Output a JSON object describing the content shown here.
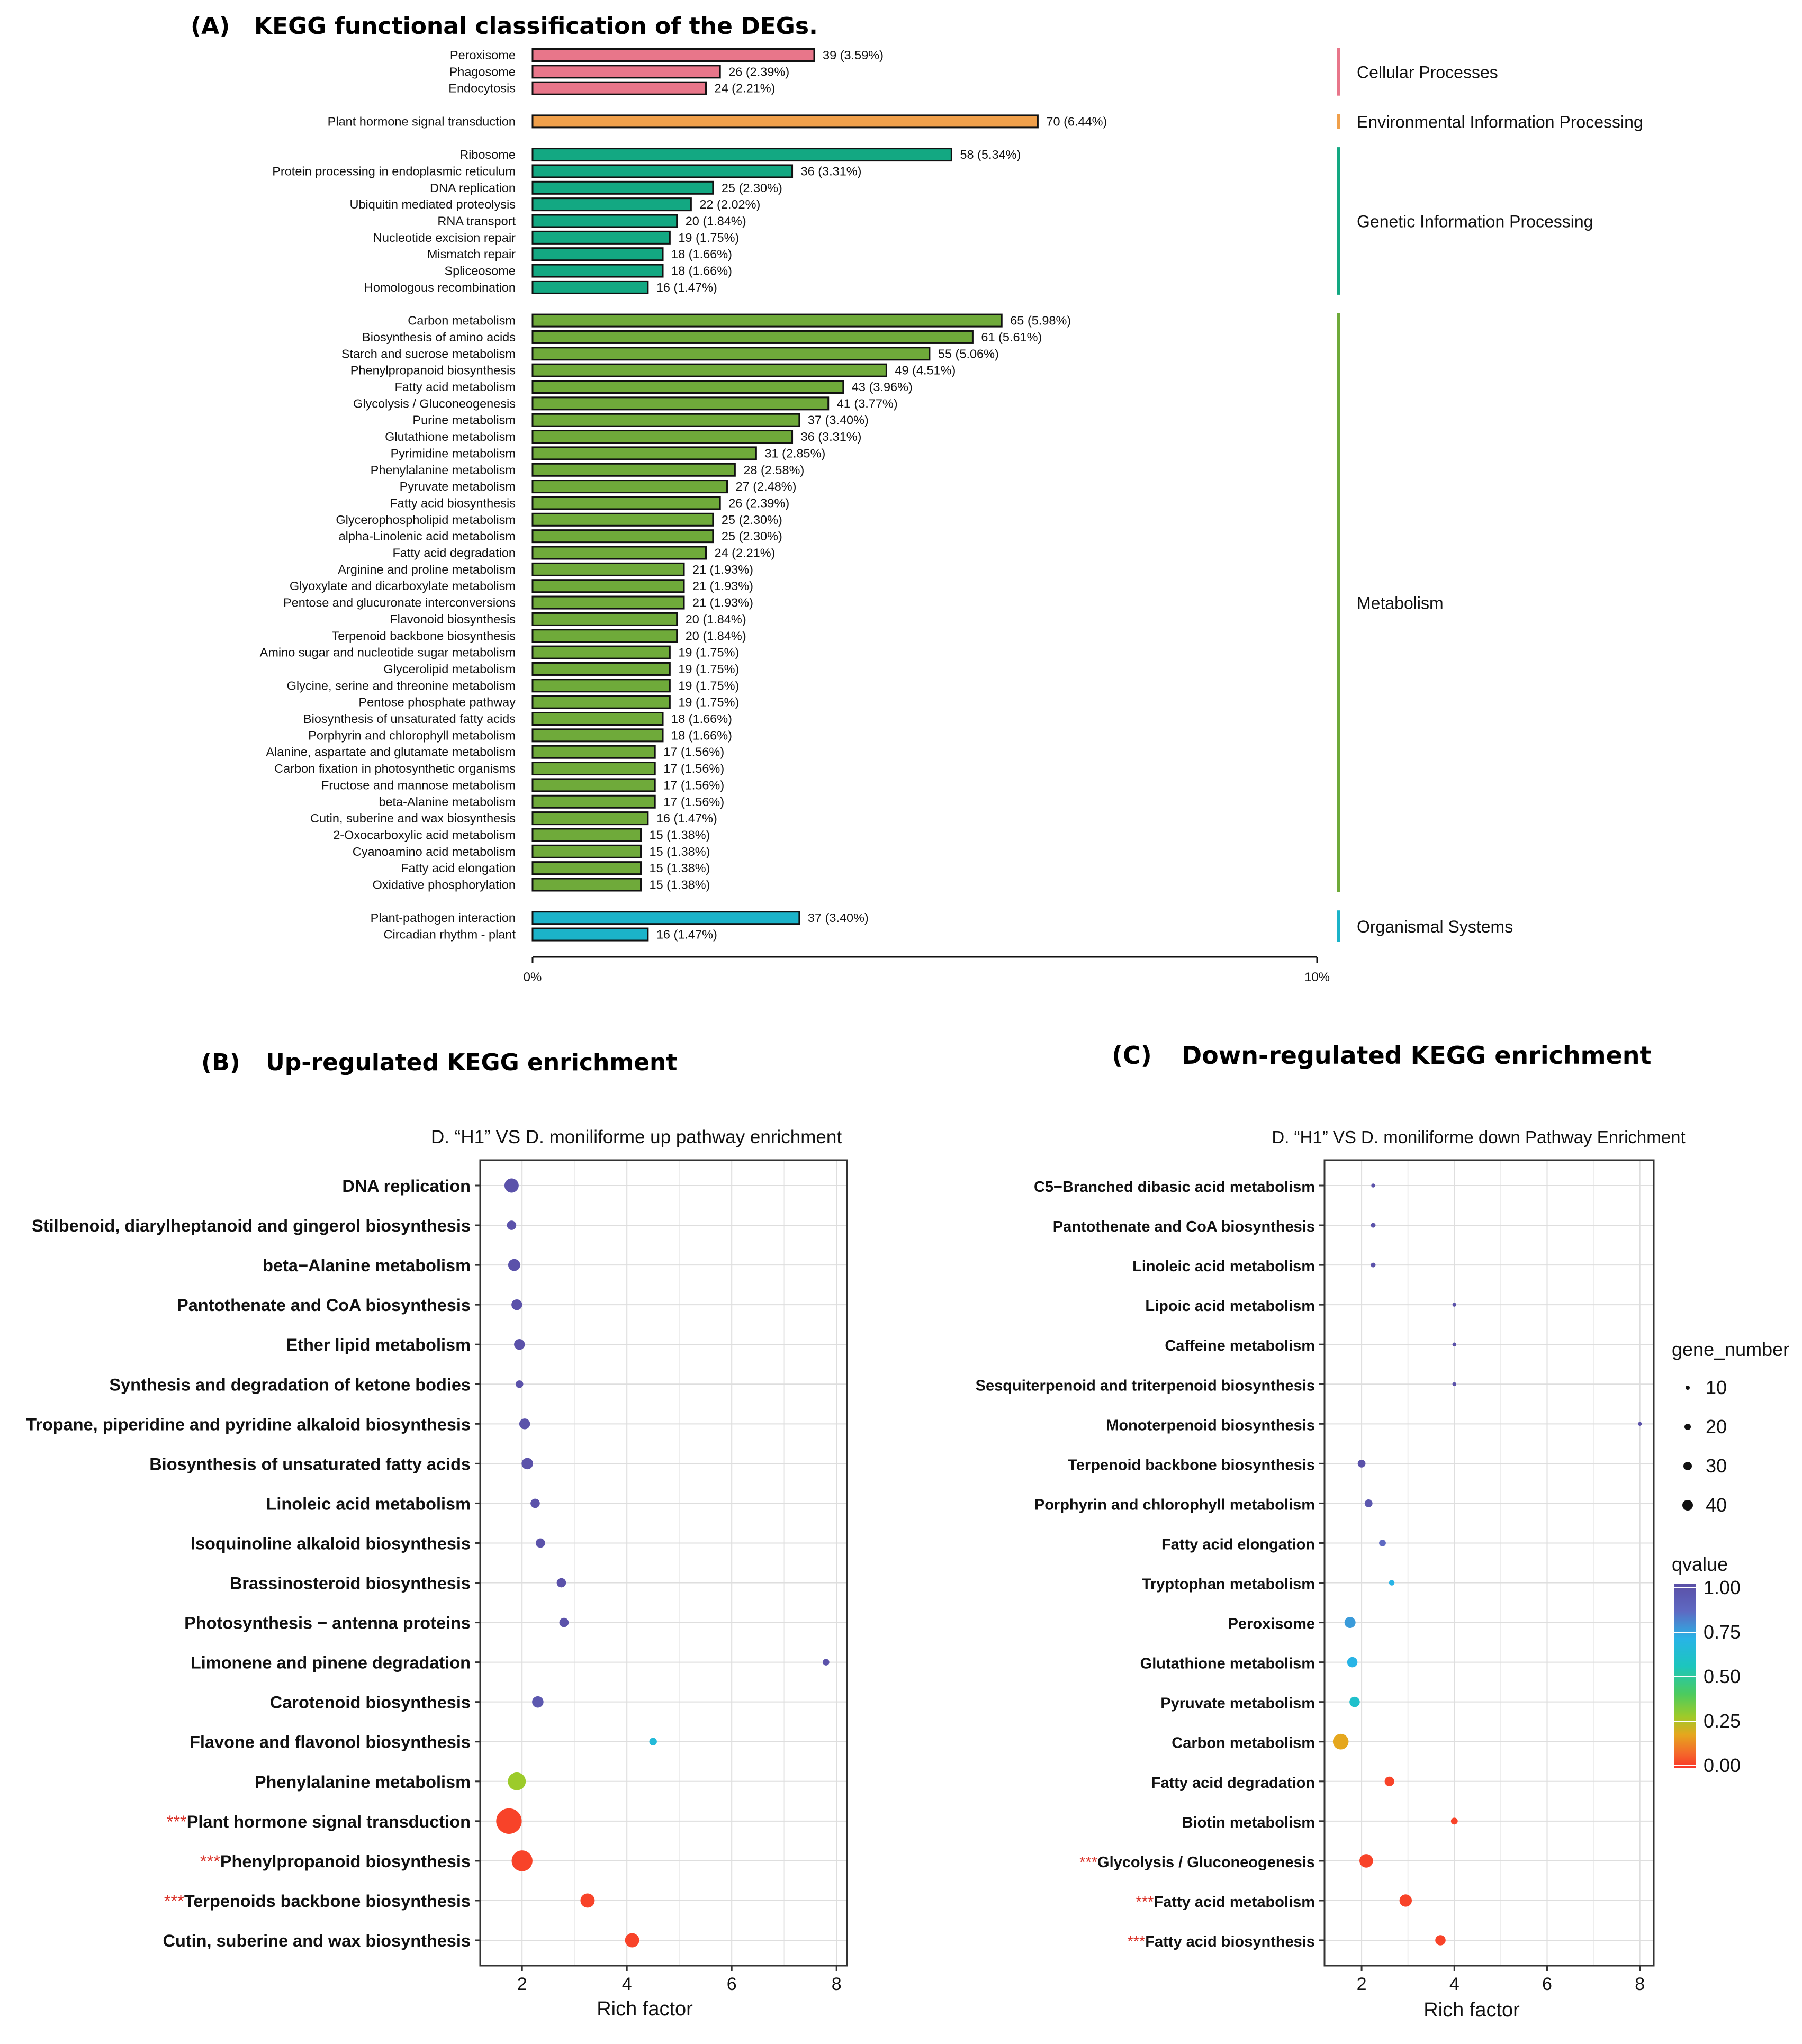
{
  "panel_a": {
    "label": "(A)",
    "title": "KEGG functional classification of the DEGs.",
    "axis_ticks": [
      "0%",
      "10%"
    ]
  },
  "panel_b": {
    "label": "(B)",
    "title": "Up-regulated KEGG enrichment",
    "plot_title": "D. “H1” VS D. moniliforme up pathway enrichment",
    "xlabel": "Rich factor",
    "xticks": [
      "2",
      "4",
      "6",
      "8"
    ],
    "star": "***"
  },
  "panel_c": {
    "label": "(C)",
    "title": "Down-regulated KEGG enrichment",
    "plot_title": "D. “H1” VS D. moniliforme down Pathway Enrichment",
    "xlabel": "Rich factor",
    "xticks": [
      "2",
      "4",
      "6",
      "8"
    ],
    "star": "***"
  },
  "legend": {
    "gene_number_title": "gene_number",
    "gene_number_values": [
      "10",
      "20",
      "30",
      "40"
    ],
    "qvalue_title": "qvalue",
    "qvalue_ticks": [
      "1.00",
      "0.75",
      "0.50",
      "0.25",
      "0.00"
    ]
  },
  "colors": {
    "cellular": "#E8768A",
    "environmental": "#F0A04B",
    "genetic": "#13A882",
    "metabolism": "#6FAA3A",
    "organismal": "#1BB3C9",
    "star": "#D9342B"
  },
  "chart_data": [
    {
      "type": "bar",
      "orientation": "horizontal",
      "title": "KEGG functional classification of the DEGs.",
      "xlim_percent": [
        0,
        10
      ],
      "groups": [
        {
          "name": "Cellular Processes",
          "color": "#E8768A",
          "items": [
            {
              "label": "Peroxisome",
              "count": 39,
              "pct": 3.59,
              "text": "39 (3.59%)"
            },
            {
              "label": "Phagosome",
              "count": 26,
              "pct": 2.39,
              "text": "26 (2.39%)"
            },
            {
              "label": "Endocytosis",
              "count": 24,
              "pct": 2.21,
              "text": "24 (2.21%)"
            }
          ]
        },
        {
          "name": "Environmental Information Processing",
          "color": "#F0A04B",
          "items": [
            {
              "label": "Plant hormone signal transduction",
              "count": 70,
              "pct": 6.44,
              "text": "70 (6.44%)"
            }
          ]
        },
        {
          "name": "Genetic Information Processing",
          "color": "#13A882",
          "items": [
            {
              "label": "Ribosome",
              "count": 58,
              "pct": 5.34,
              "text": "58 (5.34%)"
            },
            {
              "label": "Protein processing in endoplasmic reticulum",
              "count": 36,
              "pct": 3.31,
              "text": "36 (3.31%)"
            },
            {
              "label": "DNA replication",
              "count": 25,
              "pct": 2.3,
              "text": "25 (2.30%)"
            },
            {
              "label": "Ubiquitin mediated proteolysis",
              "count": 22,
              "pct": 2.02,
              "text": "22 (2.02%)"
            },
            {
              "label": "RNA transport",
              "count": 20,
              "pct": 1.84,
              "text": "20 (1.84%)"
            },
            {
              "label": "Nucleotide excision repair",
              "count": 19,
              "pct": 1.75,
              "text": "19 (1.75%)"
            },
            {
              "label": "Mismatch repair",
              "count": 18,
              "pct": 1.66,
              "text": "18 (1.66%)"
            },
            {
              "label": "Spliceosome",
              "count": 18,
              "pct": 1.66,
              "text": "18 (1.66%)"
            },
            {
              "label": "Homologous recombination",
              "count": 16,
              "pct": 1.47,
              "text": "16 (1.47%)"
            }
          ]
        },
        {
          "name": "Metabolism",
          "color": "#6FAA3A",
          "items": [
            {
              "label": "Carbon metabolism",
              "count": 65,
              "pct": 5.98,
              "text": "65 (5.98%)"
            },
            {
              "label": "Biosynthesis of amino acids",
              "count": 61,
              "pct": 5.61,
              "text": "61 (5.61%)"
            },
            {
              "label": "Starch and sucrose metabolism",
              "count": 55,
              "pct": 5.06,
              "text": "55 (5.06%)"
            },
            {
              "label": "Phenylpropanoid biosynthesis",
              "count": 49,
              "pct": 4.51,
              "text": "49 (4.51%)"
            },
            {
              "label": "Fatty acid metabolism",
              "count": 43,
              "pct": 3.96,
              "text": "43 (3.96%)"
            },
            {
              "label": "Glycolysis / Gluconeogenesis",
              "count": 41,
              "pct": 3.77,
              "text": "41 (3.77%)"
            },
            {
              "label": "Purine metabolism",
              "count": 37,
              "pct": 3.4,
              "text": "37 (3.40%)"
            },
            {
              "label": "Glutathione metabolism",
              "count": 36,
              "pct": 3.31,
              "text": "36 (3.31%)"
            },
            {
              "label": "Pyrimidine metabolism",
              "count": 31,
              "pct": 2.85,
              "text": "31 (2.85%)"
            },
            {
              "label": "Phenylalanine metabolism",
              "count": 28,
              "pct": 2.58,
              "text": "28 (2.58%)"
            },
            {
              "label": "Pyruvate metabolism",
              "count": 27,
              "pct": 2.48,
              "text": "27 (2.48%)"
            },
            {
              "label": "Fatty acid biosynthesis",
              "count": 26,
              "pct": 2.39,
              "text": "26 (2.39%)"
            },
            {
              "label": "Glycerophospholipid metabolism",
              "count": 25,
              "pct": 2.3,
              "text": "25 (2.30%)"
            },
            {
              "label": "alpha-Linolenic acid metabolism",
              "count": 25,
              "pct": 2.3,
              "text": "25 (2.30%)"
            },
            {
              "label": "Fatty acid degradation",
              "count": 24,
              "pct": 2.21,
              "text": "24 (2.21%)"
            },
            {
              "label": "Arginine and proline metabolism",
              "count": 21,
              "pct": 1.93,
              "text": "21 (1.93%)"
            },
            {
              "label": "Glyoxylate and dicarboxylate metabolism",
              "count": 21,
              "pct": 1.93,
              "text": "21 (1.93%)"
            },
            {
              "label": "Pentose and glucuronate interconversions",
              "count": 21,
              "pct": 1.93,
              "text": "21 (1.93%)"
            },
            {
              "label": "Flavonoid biosynthesis",
              "count": 20,
              "pct": 1.84,
              "text": "20 (1.84%)"
            },
            {
              "label": "Terpenoid backbone biosynthesis",
              "count": 20,
              "pct": 1.84,
              "text": "20 (1.84%)"
            },
            {
              "label": "Amino sugar and nucleotide sugar metabolism",
              "count": 19,
              "pct": 1.75,
              "text": "19 (1.75%)"
            },
            {
              "label": "Glycerolipid metabolism",
              "count": 19,
              "pct": 1.75,
              "text": "19 (1.75%)"
            },
            {
              "label": "Glycine, serine and threonine metabolism",
              "count": 19,
              "pct": 1.75,
              "text": "19 (1.75%)"
            },
            {
              "label": "Pentose phosphate pathway",
              "count": 19,
              "pct": 1.75,
              "text": "19 (1.75%)"
            },
            {
              "label": "Biosynthesis of unsaturated fatty acids",
              "count": 18,
              "pct": 1.66,
              "text": "18 (1.66%)"
            },
            {
              "label": "Porphyrin and chlorophyll metabolism",
              "count": 18,
              "pct": 1.66,
              "text": "18 (1.66%)"
            },
            {
              "label": "Alanine, aspartate and glutamate metabolism",
              "count": 17,
              "pct": 1.56,
              "text": "17 (1.56%)"
            },
            {
              "label": "Carbon fixation in photosynthetic organisms",
              "count": 17,
              "pct": 1.56,
              "text": "17 (1.56%)"
            },
            {
              "label": "Fructose and mannose metabolism",
              "count": 17,
              "pct": 1.56,
              "text": "17 (1.56%)"
            },
            {
              "label": "beta-Alanine metabolism",
              "count": 17,
              "pct": 1.56,
              "text": "17 (1.56%)"
            },
            {
              "label": "Cutin, suberine and wax biosynthesis",
              "count": 16,
              "pct": 1.47,
              "text": "16 (1.47%)"
            },
            {
              "label": "2-Oxocarboxylic acid metabolism",
              "count": 15,
              "pct": 1.38,
              "text": "15 (1.38%)"
            },
            {
              "label": "Cyanoamino acid metabolism",
              "count": 15,
              "pct": 1.38,
              "text": "15 (1.38%)"
            },
            {
              "label": "Fatty acid elongation",
              "count": 15,
              "pct": 1.38,
              "text": "15 (1.38%)"
            },
            {
              "label": "Oxidative phosphorylation",
              "count": 15,
              "pct": 1.38,
              "text": "15 (1.38%)"
            }
          ]
        },
        {
          "name": "Organismal Systems",
          "color": "#1BB3C9",
          "items": [
            {
              "label": "Plant-pathogen interaction",
              "count": 37,
              "pct": 3.4,
              "text": "37 (3.40%)"
            },
            {
              "label": "Circadian rhythm - plant",
              "count": 16,
              "pct": 1.47,
              "text": "16 (1.47%)"
            }
          ]
        }
      ]
    },
    {
      "type": "scatter",
      "title": "D. “H1” VS D. moniliforme up pathway enrichment",
      "xlabel": "Rich factor",
      "xlim": [
        1.2,
        8.2
      ],
      "points": [
        {
          "pathway": "DNA replication",
          "rich": 1.8,
          "genes": 14,
          "q": 0.98,
          "star": false
        },
        {
          "pathway": "Stilbenoid, diarylheptanoid and gingerol biosynthesis",
          "rich": 1.8,
          "genes": 6,
          "q": 0.98,
          "star": false
        },
        {
          "pathway": "beta−Alanine metabolism",
          "rich": 1.85,
          "genes": 10,
          "q": 0.98,
          "star": false
        },
        {
          "pathway": "Pantothenate and CoA biosynthesis",
          "rich": 1.9,
          "genes": 8,
          "q": 0.98,
          "star": false
        },
        {
          "pathway": "Ether lipid metabolism",
          "rich": 1.95,
          "genes": 8,
          "q": 0.98,
          "star": false
        },
        {
          "pathway": "Synthesis and degradation of ketone bodies",
          "rich": 1.95,
          "genes": 4,
          "q": 0.98,
          "star": false
        },
        {
          "pathway": "Tropane, piperidine and pyridine alkaloid biosynthesis",
          "rich": 2.05,
          "genes": 8,
          "q": 0.98,
          "star": false
        },
        {
          "pathway": "Biosynthesis of unsaturated fatty acids",
          "rich": 2.1,
          "genes": 9,
          "q": 0.98,
          "star": false
        },
        {
          "pathway": "Linoleic acid metabolism",
          "rich": 2.25,
          "genes": 6,
          "q": 0.98,
          "star": false
        },
        {
          "pathway": "Isoquinoline alkaloid biosynthesis",
          "rich": 2.35,
          "genes": 6,
          "q": 0.98,
          "star": false
        },
        {
          "pathway": "Brassinosteroid biosynthesis",
          "rich": 2.75,
          "genes": 6,
          "q": 0.98,
          "star": false
        },
        {
          "pathway": "Photosynthesis − antenna proteins",
          "rich": 2.8,
          "genes": 6,
          "q": 0.98,
          "star": false
        },
        {
          "pathway": "Limonene and pinene degradation",
          "rich": 7.8,
          "genes": 3,
          "q": 0.98,
          "star": false
        },
        {
          "pathway": "Carotenoid biosynthesis",
          "rich": 2.3,
          "genes": 9,
          "q": 0.95,
          "star": false
        },
        {
          "pathway": "Flavone and flavonol biosynthesis",
          "rich": 4.5,
          "genes": 4,
          "q": 0.65,
          "star": false
        },
        {
          "pathway": "Phenylalanine metabolism",
          "rich": 1.9,
          "genes": 22,
          "q": 0.28,
          "star": false
        },
        {
          "pathway": "Plant hormone signal transduction",
          "rich": 1.75,
          "genes": 45,
          "q": 0.02,
          "star": true
        },
        {
          "pathway": "Phenylpropanoid biosynthesis",
          "rich": 2.0,
          "genes": 30,
          "q": 0.02,
          "star": true
        },
        {
          "pathway": "Terpenoids backbone biosynthesis",
          "rich": 3.25,
          "genes": 14,
          "q": 0.02,
          "star": true
        },
        {
          "pathway": "Cutin, suberine and wax biosynthesis",
          "rich": 4.1,
          "genes": 14,
          "q": 0.02,
          "star": false
        }
      ]
    },
    {
      "type": "scatter",
      "title": "D. “H1” VS D. moniliforme down Pathway Enrichment",
      "xlabel": "Rich factor",
      "xlim": [
        1.2,
        8.3
      ],
      "points": [
        {
          "pathway": "C5−Branched dibasic acid metabolism",
          "rich": 2.25,
          "genes": 1,
          "q": 0.98,
          "star": false
        },
        {
          "pathway": "Pantothenate and CoA biosynthesis",
          "rich": 2.25,
          "genes": 1.5,
          "q": 0.98,
          "star": false
        },
        {
          "pathway": "Linoleic acid metabolism",
          "rich": 2.25,
          "genes": 1.5,
          "q": 0.98,
          "star": false
        },
        {
          "pathway": "Lipoic acid metabolism",
          "rich": 4.0,
          "genes": 1,
          "q": 0.98,
          "star": false
        },
        {
          "pathway": "Caffeine metabolism",
          "rich": 4.0,
          "genes": 1,
          "q": 0.98,
          "star": false
        },
        {
          "pathway": "Sesquiterpenoid and triterpenoid biosynthesis",
          "rich": 4.0,
          "genes": 1,
          "q": 0.98,
          "star": false
        },
        {
          "pathway": "Monoterpenoid biosynthesis",
          "rich": 8.0,
          "genes": 1,
          "q": 0.98,
          "star": false
        },
        {
          "pathway": "Terpenoid backbone biosynthesis",
          "rich": 2.0,
          "genes": 4,
          "q": 0.98,
          "star": false
        },
        {
          "pathway": "Porphyrin and chlorophyll metabolism",
          "rich": 2.15,
          "genes": 4,
          "q": 0.95,
          "star": false
        },
        {
          "pathway": "Fatty acid elongation",
          "rich": 2.45,
          "genes": 3,
          "q": 0.85,
          "star": false
        },
        {
          "pathway": "Tryptophan metabolism",
          "rich": 2.65,
          "genes": 2,
          "q": 0.7,
          "star": false
        },
        {
          "pathway": "Peroxisome",
          "rich": 1.75,
          "genes": 8,
          "q": 0.75,
          "star": false
        },
        {
          "pathway": "Glutathione metabolism",
          "rich": 1.8,
          "genes": 7,
          "q": 0.7,
          "star": false
        },
        {
          "pathway": "Pyruvate metabolism",
          "rich": 1.85,
          "genes": 7,
          "q": 0.6,
          "star": false
        },
        {
          "pathway": "Carbon metabolism",
          "rich": 1.55,
          "genes": 16,
          "q": 0.18,
          "star": false
        },
        {
          "pathway": "Fatty acid degradation",
          "rich": 2.6,
          "genes": 6,
          "q": 0.02,
          "star": false
        },
        {
          "pathway": "Biotin metabolism",
          "rich": 4.0,
          "genes": 3,
          "q": 0.02,
          "star": false
        },
        {
          "pathway": "Glycolysis / Gluconeogenesis",
          "rich": 2.1,
          "genes": 12,
          "q": 0.02,
          "star": true
        },
        {
          "pathway": "Fatty acid metabolism",
          "rich": 2.95,
          "genes": 10,
          "q": 0.02,
          "star": true
        },
        {
          "pathway": "Fatty acid biosynthesis",
          "rich": 3.7,
          "genes": 7,
          "q": 0.02,
          "star": true
        }
      ]
    }
  ]
}
